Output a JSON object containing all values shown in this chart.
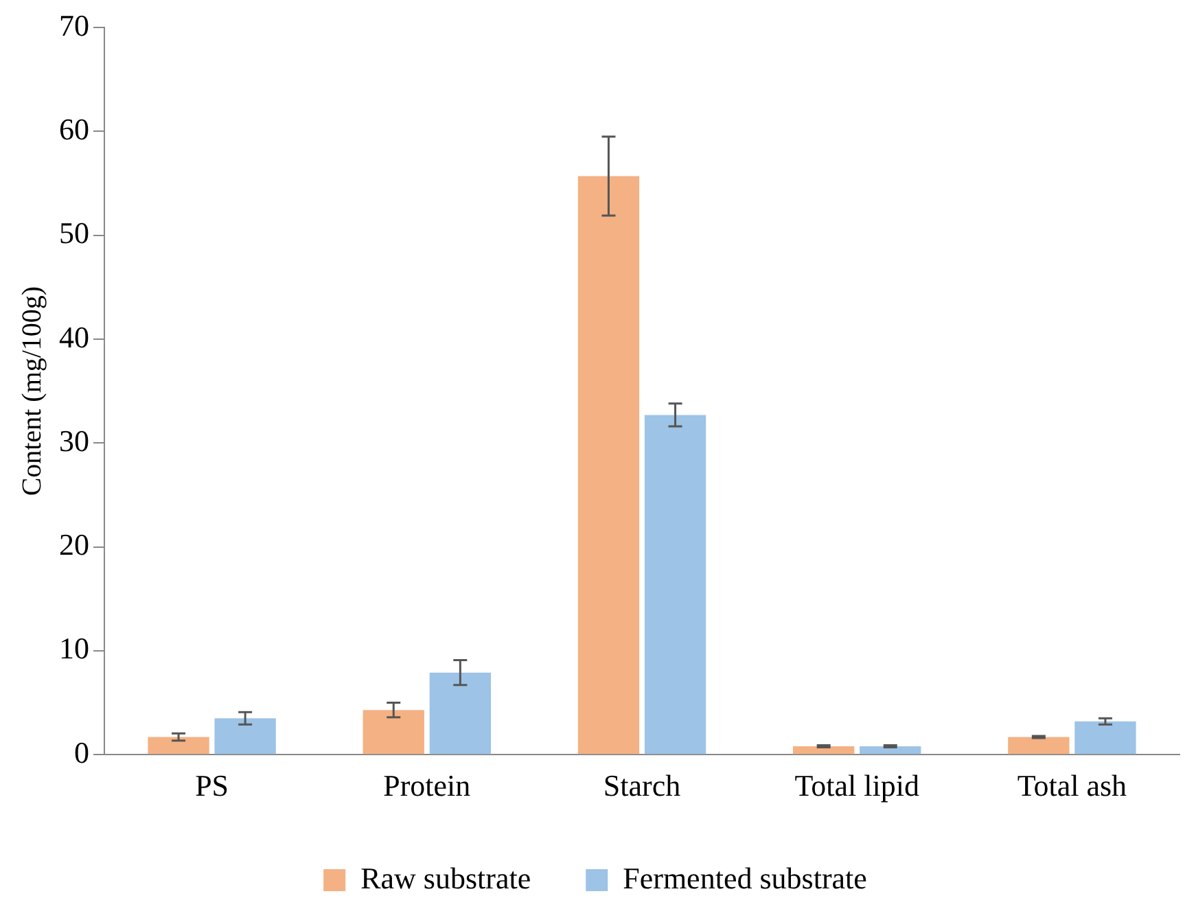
{
  "chart_data": {
    "type": "bar",
    "ylabel": "Content (mg/100g)",
    "categories": [
      "PS",
      "Protein",
      "Starch",
      "Total lipid",
      "Total ash"
    ],
    "series": [
      {
        "name": "Raw substrate",
        "color": "#f4b183",
        "values": [
          1.7,
          4.3,
          55.7,
          0.8,
          1.7
        ],
        "errors": [
          0.35,
          0.7,
          3.8,
          0.1,
          0.1
        ]
      },
      {
        "name": "Fermented substrate",
        "color": "#9dc3e6",
        "values": [
          3.5,
          7.9,
          32.7,
          0.8,
          3.2
        ],
        "errors": [
          0.6,
          1.2,
          1.1,
          0.1,
          0.3
        ]
      }
    ],
    "ylim": [
      0,
      70
    ],
    "yticks": [
      0,
      10,
      20,
      30,
      40,
      50,
      60,
      70
    ],
    "grid": false,
    "legend": "bottom"
  }
}
